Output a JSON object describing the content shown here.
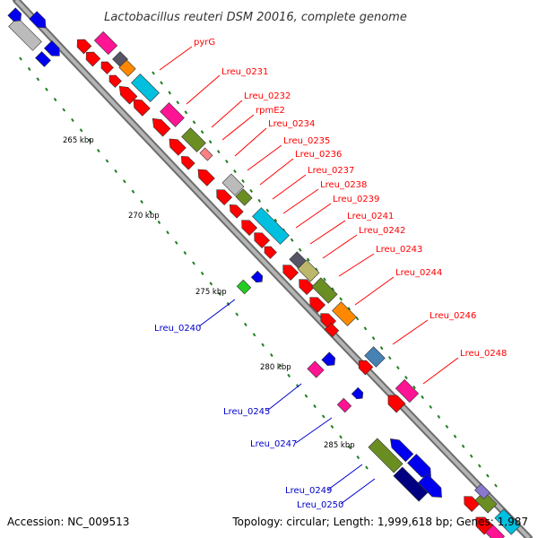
{
  "title": "Lactobacillus reuteri DSM 20016, complete genome",
  "accession": "Accession: NC_009513",
  "topology": "Topology: circular; Length: 1,999,618 bp; Genes: 1,987",
  "colors": {
    "backbone": "#8a8a8a",
    "tick": "#1f7f1f",
    "label_red": "#ff0000",
    "label_blue": "#0000cc",
    "gene_red": "#ff0000",
    "gene_blue": "#0000ee",
    "gene_magenta": "#ff1493",
    "gene_cyan": "#00bfdf",
    "gene_olive": "#6b8e23",
    "gene_khaki": "#bdb76b",
    "gene_gray": "#bbbbbb",
    "gene_dark": "#555566",
    "gene_orange": "#ff8800",
    "gene_green": "#22cc22",
    "gene_navy": "#000080",
    "gene_steel": "#4682b4"
  },
  "kbp_labels": [
    "265 kbp",
    "270 kbp",
    "275 kbp",
    "280 kbp",
    "285 kbp"
  ],
  "gene_labels_red": [
    "pyrG",
    "Lreu_0231",
    "Lreu_0232",
    "rpmE2",
    "Lreu_0234",
    "Lreu_0235",
    "Lreu_0236",
    "Lreu_0237",
    "Lreu_0238",
    "Lreu_0239",
    "Lreu_0241",
    "Lreu_0242",
    "Lreu_0243",
    "Lreu_0244",
    "Lreu_0246",
    "Lreu_0248"
  ],
  "gene_labels_blue": [
    "Lreu_0240",
    "Lreu_0245",
    "Lreu_0247",
    "Lreu_0249",
    "Lreu_0250"
  ]
}
